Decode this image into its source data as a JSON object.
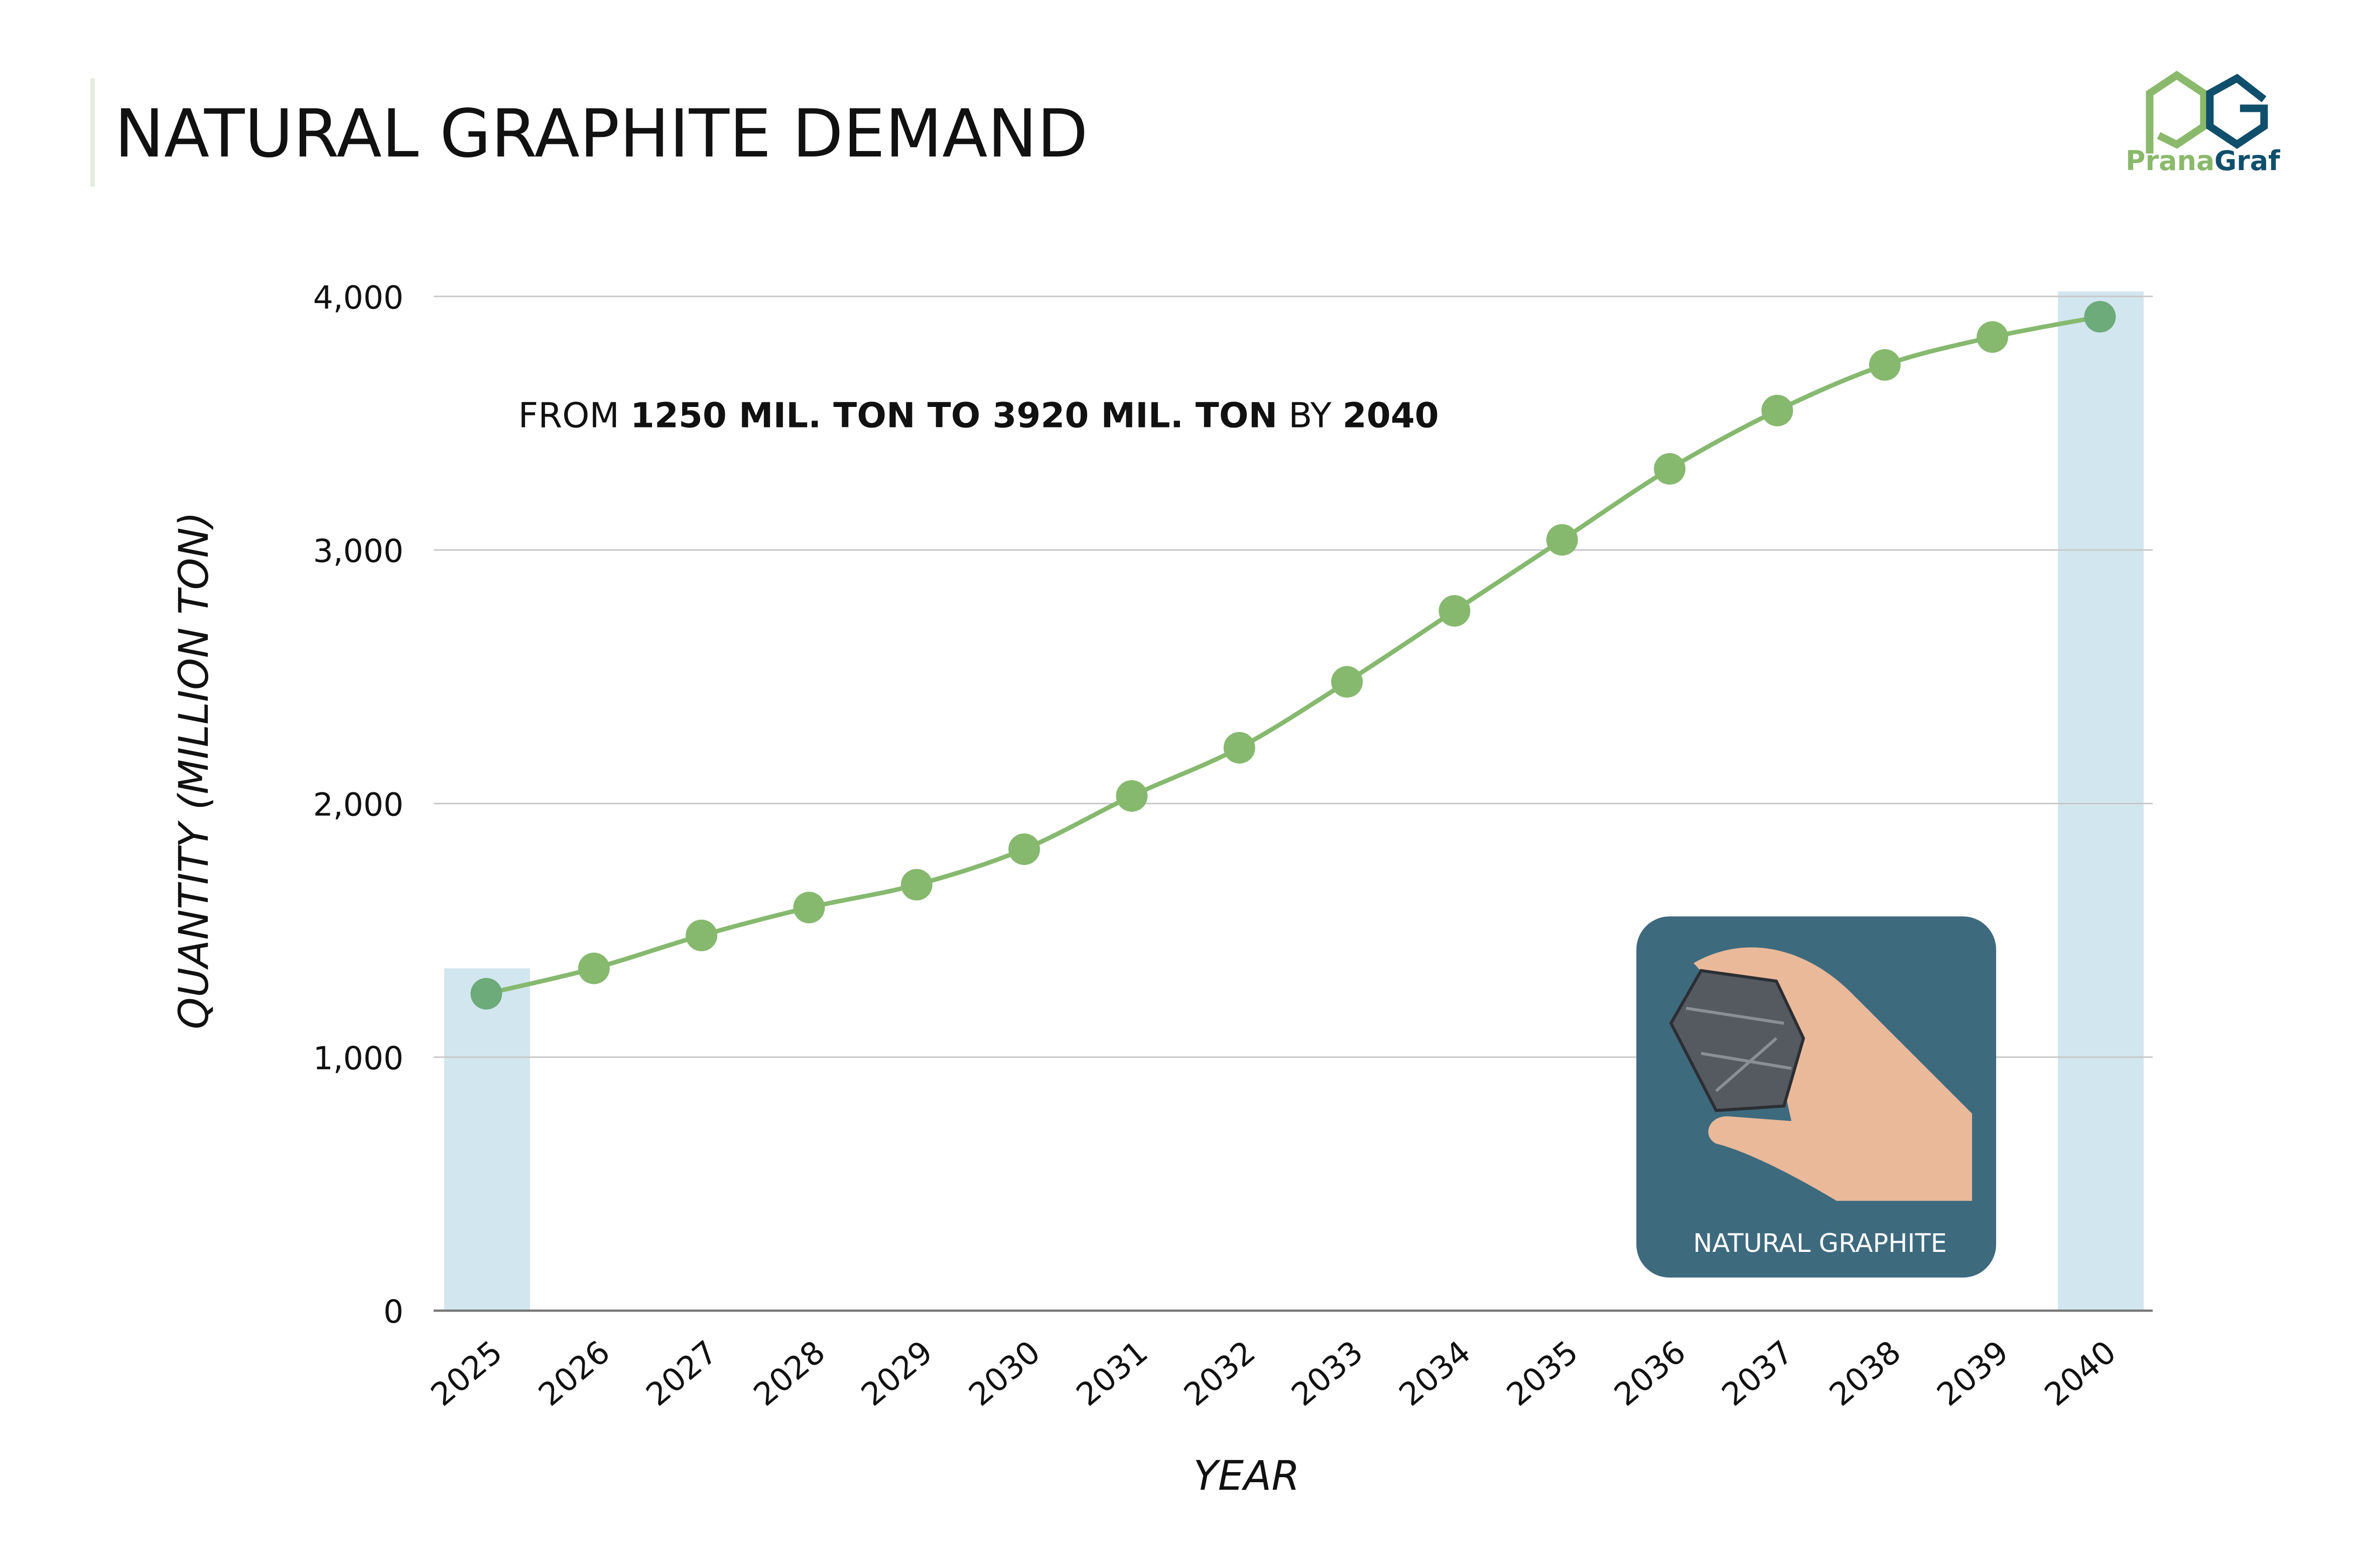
{
  "title": "NATURAL GRAPHITE DEMAND",
  "logo": {
    "text_left": "Prana",
    "text_right": "Graf",
    "colors": {
      "green": "#8ab96b",
      "blue": "#0f4f6b"
    }
  },
  "annotation": {
    "parts": [
      {
        "text": "FROM ",
        "bold": false
      },
      {
        "text": "1250 MIL. TON TO 3920 MIL. TON",
        "bold": true
      },
      {
        "text": " BY ",
        "bold": false
      },
      {
        "text": "2040",
        "bold": true
      }
    ]
  },
  "inset": {
    "label": "NATURAL GRAPHITE",
    "bg_color": "#3e6a7e"
  },
  "chart_data": {
    "type": "line",
    "title": "NATURAL GRAPHITE DEMAND",
    "xlabel": "YEAR",
    "ylabel": "QUANTITY (MILLION TON)",
    "x": [
      "2025",
      "2026",
      "2027",
      "2028",
      "2029",
      "2030",
      "2031",
      "2032",
      "2033",
      "2034",
      "2035",
      "2036",
      "2037",
      "2038",
      "2039",
      "2040"
    ],
    "values": [
      1250,
      1350,
      1480,
      1590,
      1680,
      1820,
      2030,
      2220,
      2480,
      2760,
      3040,
      3320,
      3550,
      3730,
      3840,
      3920
    ],
    "ylim": [
      0,
      4000
    ],
    "yticks": [
      0,
      1000,
      2000,
      3000,
      4000
    ],
    "ytick_labels": [
      "0",
      "1,000",
      "2,000",
      "3,000",
      "4,000"
    ],
    "grid": true,
    "highlight_years": [
      "2025",
      "2040"
    ],
    "colors": {
      "line": "#86b96e",
      "highlight": "#d2e6ef",
      "endpoint": "#6dab7a"
    }
  }
}
